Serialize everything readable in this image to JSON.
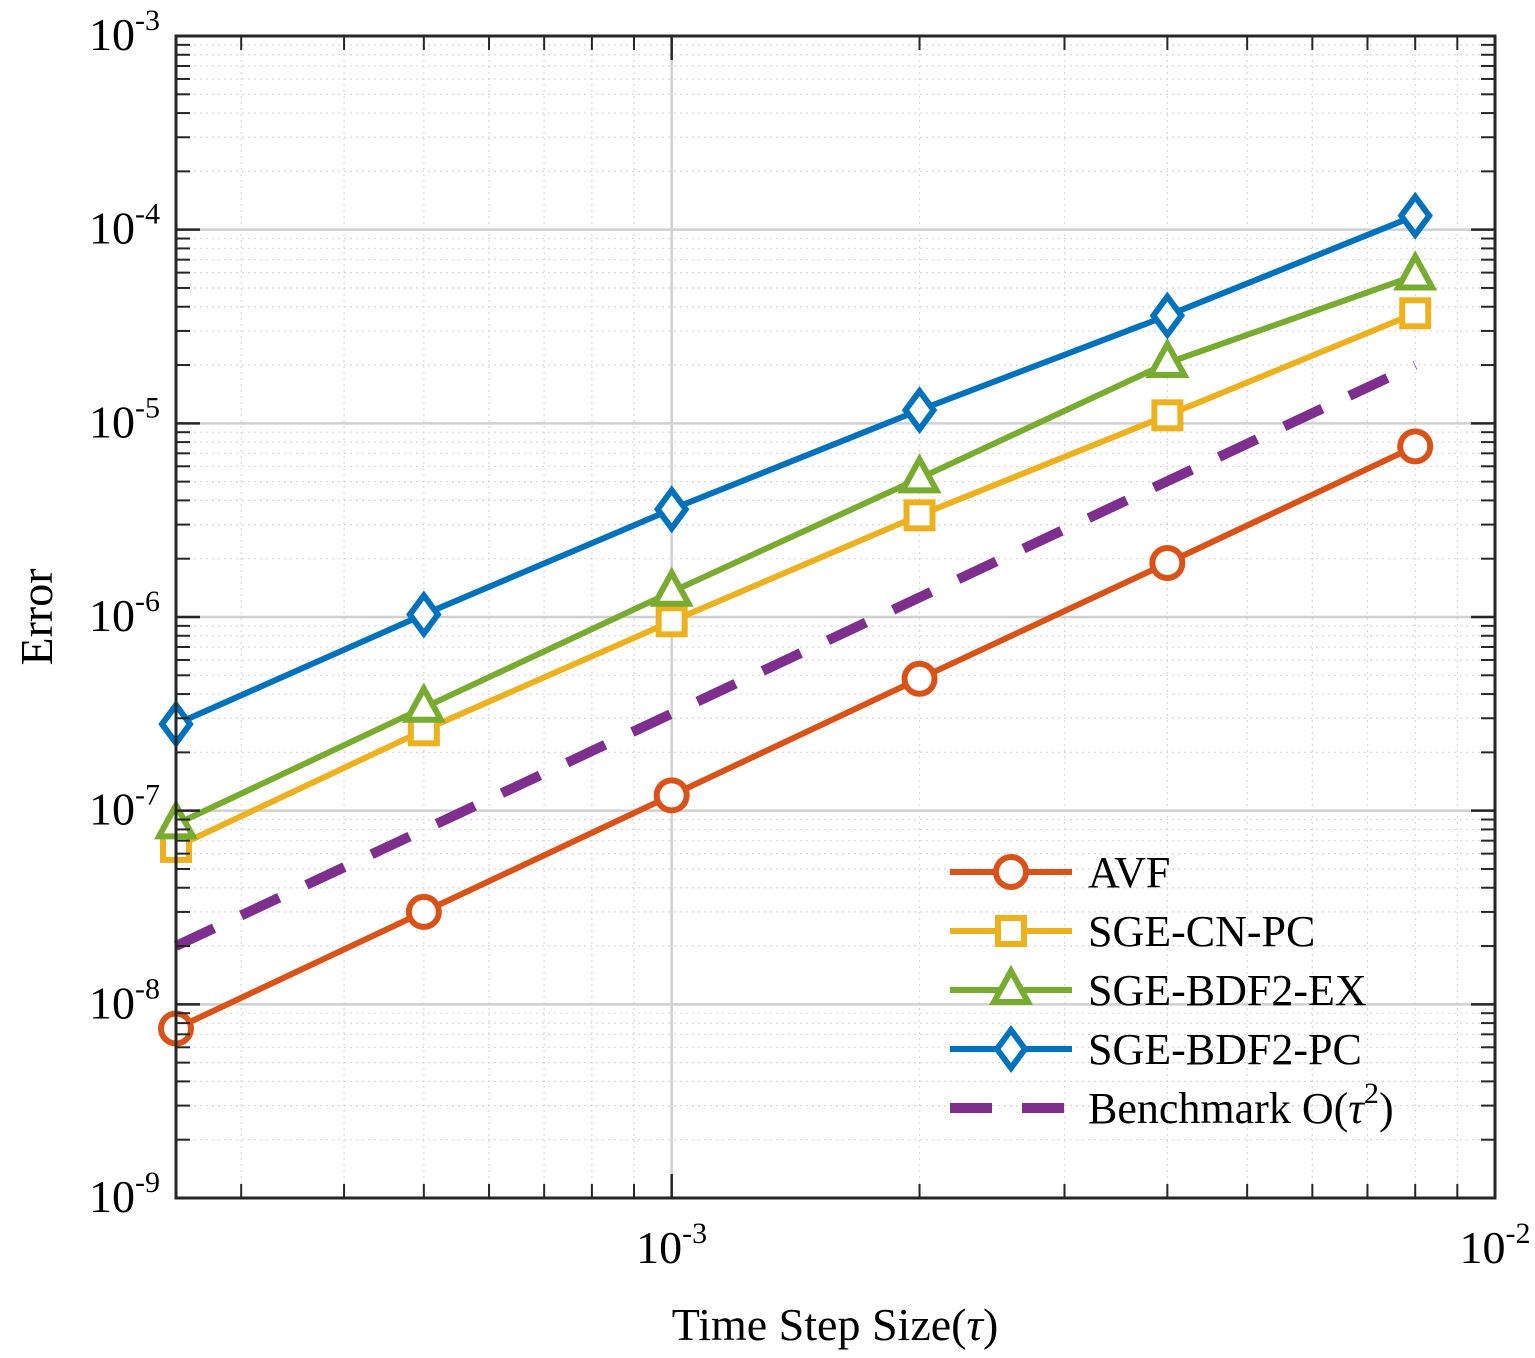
{
  "chart_data": {
    "type": "line",
    "scale": {
      "x": "log",
      "y": "log"
    },
    "xlabel": "Time Step Size(τ)",
    "ylabel": "Error",
    "xlim": [
      0.00025,
      0.01
    ],
    "ylim": [
      1e-09,
      0.001
    ],
    "grid": true,
    "legend_position": "bottom-right",
    "x": [
      0.00025,
      0.0005,
      0.001,
      0.002,
      0.004,
      0.008
    ],
    "x_ticks": [
      {
        "value": 0.001,
        "base": "10",
        "exp": "-3"
      },
      {
        "value": 0.01,
        "base": "10",
        "exp": "-2"
      }
    ],
    "y_ticks": [
      {
        "value": 1e-09,
        "base": "10",
        "exp": "-9"
      },
      {
        "value": 1e-08,
        "base": "10",
        "exp": "-8"
      },
      {
        "value": 1e-07,
        "base": "10",
        "exp": "-7"
      },
      {
        "value": 1e-06,
        "base": "10",
        "exp": "-6"
      },
      {
        "value": 1e-05,
        "base": "10",
        "exp": "-5"
      },
      {
        "value": 0.0001,
        "base": "10",
        "exp": "-4"
      },
      {
        "value": 0.001,
        "base": "10",
        "exp": "-3"
      }
    ],
    "series": [
      {
        "name": "AVF",
        "marker": "circle",
        "color": "#D95319",
        "dashed": false,
        "values": [
          7.5e-09,
          3e-08,
          1.2e-07,
          4.8e-07,
          1.9e-06,
          7.6e-06
        ]
      },
      {
        "name": "SGE-CN-PC",
        "marker": "square",
        "color": "#EDB120",
        "dashed": false,
        "values": [
          6.5e-08,
          2.6e-07,
          9.5e-07,
          3.35e-06,
          1.1e-05,
          3.7e-05
        ]
      },
      {
        "name": "SGE-BDF2-EX",
        "marker": "triangle",
        "color": "#77AC30",
        "dashed": false,
        "values": [
          8.5e-08,
          3.4e-07,
          1.35e-06,
          5.2e-06,
          2.05e-05,
          5.8e-05
        ]
      },
      {
        "name": "SGE-BDF2-PC",
        "marker": "diamond",
        "color": "#0072BD",
        "dashed": false,
        "values": [
          2.8e-07,
          1.03e-06,
          3.6e-06,
          1.17e-05,
          3.6e-05,
          0.000118
        ]
      },
      {
        "name": "Benchmark O(τ²)",
        "label_main": "Benchmark O(",
        "label_sup": "2",
        "label_end": ")",
        "marker": "none",
        "color": "#7E2F8E",
        "dashed": true,
        "values": [
          2e-08,
          null,
          null,
          null,
          null,
          2e-05
        ]
      }
    ]
  }
}
